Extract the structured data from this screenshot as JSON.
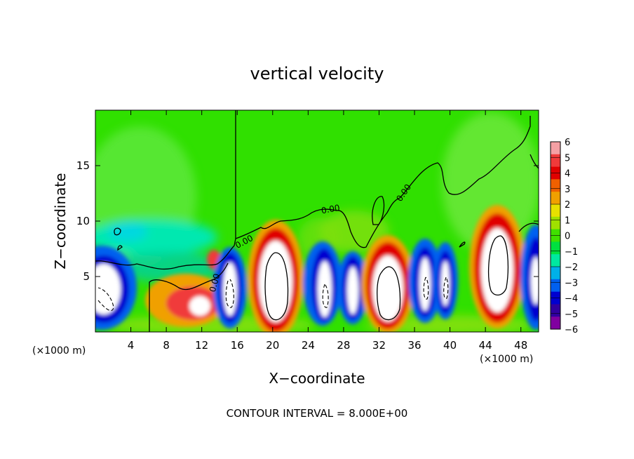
{
  "chart_data": {
    "type": "heatmap",
    "title": "vertical velocity",
    "xlabel": "X−coordinate",
    "ylabel": "Z−coordinate",
    "x_unit_left": "(×1000 m)",
    "x_unit_right": "(×1000 m)",
    "footer": "CONTOUR INTERVAL = 8.000E+00",
    "xlim": [
      0,
      50
    ],
    "ylim": [
      0,
      20
    ],
    "x_ticks": [
      4,
      8,
      12,
      16,
      20,
      24,
      28,
      32,
      36,
      40,
      44,
      48
    ],
    "y_ticks": [
      5,
      10,
      15
    ],
    "colorbar": {
      "levels": [
        6,
        5,
        4,
        3,
        2,
        1,
        0,
        -1,
        -2,
        -3,
        -4,
        -5,
        -6
      ],
      "colors": [
        "#f4a0a4",
        "#f03a3a",
        "#e00000",
        "#f06000",
        "#f0a000",
        "#e8e000",
        "#a0e000",
        "#40e000",
        "#00e040",
        "#00e8a0",
        "#00b0e8",
        "#0060f0",
        "#0000d0",
        "#3000a0",
        "#8000a0"
      ]
    },
    "contour_labels": [
      "0.00",
      "0.00",
      "0.00",
      "0.00"
    ],
    "cells": [
      {
        "x_center": 1.0,
        "z_center": 3.4,
        "sign": "negative",
        "peak_value": -20
      },
      {
        "x_center": 11.5,
        "z_center": 2.3,
        "sign": "positive",
        "peak_value": 8
      },
      {
        "x_center": 15.2,
        "z_center": 3.4,
        "sign": "negative",
        "peak_value": -20
      },
      {
        "x_center": 20.5,
        "z_center": 4.5,
        "sign": "positive",
        "peak_value": 24
      },
      {
        "x_center": 26.2,
        "z_center": 3.5,
        "sign": "negative",
        "peak_value": -16
      },
      {
        "x_center": 29.0,
        "z_center": 3.6,
        "sign": "negative",
        "peak_value": -16
      },
      {
        "x_center": 33.5,
        "z_center": 3.6,
        "sign": "positive",
        "peak_value": 16
      },
      {
        "x_center": 37.5,
        "z_center": 3.7,
        "sign": "negative",
        "peak_value": -16
      },
      {
        "x_center": 40.0,
        "z_center": 3.8,
        "sign": "negative",
        "peak_value": -16
      },
      {
        "x_center": 45.0,
        "z_center": 4.8,
        "sign": "positive",
        "peak_value": 24
      },
      {
        "x_center": 49.6,
        "z_center": 4.0,
        "sign": "negative",
        "peak_value": -16
      }
    ]
  }
}
